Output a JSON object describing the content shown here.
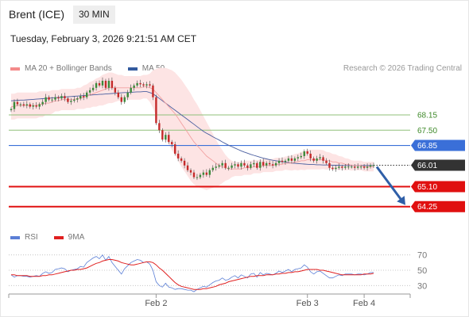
{
  "header": {
    "instrument": "Brent (ICE)",
    "timeframe": "30 MIN",
    "datetime": "Tuesday, February 3, 2026 9:21:51 AM CET"
  },
  "legend_main": [
    {
      "label": "MA 20 + Bollinger Bands",
      "color": "#f48a8a"
    },
    {
      "label": "MA 50",
      "color": "#335b9e"
    }
  ],
  "legend_rsi": [
    {
      "label": "RSI",
      "color": "#5b7fd6"
    },
    {
      "label": "9MA",
      "color": "#e02020"
    }
  ],
  "credit": "Research © 2026 Trading Central",
  "colors": {
    "resistance": "#90c17a",
    "pivot": "#3a6fd8",
    "support": "#e01010",
    "current": "#333333",
    "bull": "#3a8a3a",
    "bear": "#c52a2a",
    "bb_fill": "#fde4e4",
    "ma20": "#f2a0a0",
    "ma50": "#4a5fa0",
    "arrow": "#2f5fa8"
  },
  "chart_data": [
    {
      "type": "candlestick",
      "title": "",
      "ylim": [
        63.6,
        69.8
      ],
      "x_ticks": [
        {
          "label": "Feb 2",
          "index": 46
        },
        {
          "label": "Feb 3",
          "index": 94
        },
        {
          "label": "Feb 4",
          "index": 112
        }
      ],
      "n_bars": 116,
      "levels": [
        {
          "value": 68.15,
          "label": "68.15",
          "kind": "resistance"
        },
        {
          "value": 67.5,
          "label": "67.50",
          "kind": "resistance"
        },
        {
          "value": 66.85,
          "label": "66.85",
          "kind": "pivot"
        },
        {
          "value": 66.01,
          "label": "66.01",
          "kind": "current"
        },
        {
          "value": 65.1,
          "label": "65.10",
          "kind": "support"
        },
        {
          "value": 64.25,
          "label": "64.25",
          "kind": "support"
        }
      ],
      "close": [
        68.4,
        68.7,
        68.6,
        68.6,
        68.55,
        68.6,
        68.5,
        68.55,
        68.5,
        68.6,
        68.7,
        68.9,
        68.8,
        68.8,
        68.9,
        68.85,
        68.95,
        68.85,
        68.7,
        68.75,
        68.8,
        68.85,
        68.95,
        68.9,
        69.1,
        69.2,
        69.3,
        69.5,
        69.4,
        69.6,
        69.3,
        69.6,
        69.3,
        69.1,
        68.9,
        68.7,
        68.9,
        69.1,
        69.3,
        69.4,
        69.5,
        69.45,
        69.4,
        69.45,
        69.4,
        68.9,
        67.8,
        67.5,
        67.1,
        67.3,
        67.0,
        66.9,
        66.5,
        66.3,
        66.2,
        66.0,
        65.8,
        65.7,
        65.5,
        65.5,
        65.6,
        65.7,
        65.6,
        65.8,
        65.9,
        65.95,
        66.0,
        66.1,
        65.9,
        65.9,
        66.0,
        66.05,
        65.95,
        66.1,
        66.0,
        65.9,
        66.05,
        66.1,
        65.9,
        66.15,
        66.0,
        66.1,
        66.05,
        66.0,
        66.1,
        66.2,
        66.15,
        66.2,
        66.3,
        66.2,
        66.3,
        66.35,
        66.4,
        66.6,
        66.5,
        66.3,
        66.2,
        66.3,
        66.35,
        66.2,
        66.1,
        65.9,
        65.85,
        65.9,
        65.95,
        65.9,
        65.95,
        65.95,
        65.95,
        65.9,
        65.95,
        65.95,
        65.9,
        65.95,
        66.01,
        66.01
      ],
      "ma20": [
        68.5,
        68.5,
        68.55,
        68.55,
        68.55,
        68.55,
        68.55,
        68.55,
        68.55,
        68.6,
        68.6,
        68.65,
        68.65,
        68.7,
        68.75,
        68.75,
        68.8,
        68.8,
        68.8,
        68.8,
        68.8,
        68.85,
        68.85,
        68.9,
        68.95,
        69.0,
        69.05,
        69.1,
        69.15,
        69.2,
        69.25,
        69.3,
        69.3,
        69.3,
        69.3,
        69.3,
        69.3,
        69.3,
        69.3,
        69.3,
        69.3,
        69.3,
        69.35,
        69.35,
        69.3,
        69.25,
        69.1,
        68.95,
        68.8,
        68.65,
        68.5,
        68.35,
        68.2,
        68.0,
        67.8,
        67.6,
        67.4,
        67.2,
        67.0,
        66.85,
        66.7,
        66.55,
        66.4,
        66.3,
        66.2,
        66.1,
        66.0,
        65.95,
        65.9,
        65.85,
        65.85,
        65.85,
        65.85,
        65.85,
        65.9,
        65.9,
        65.9,
        65.95,
        65.95,
        65.95,
        66.0,
        66.0,
        66.0,
        66.0,
        66.05,
        66.05,
        66.05,
        66.1,
        66.1,
        66.1,
        66.15,
        66.15,
        66.2,
        66.2,
        66.25,
        66.25,
        66.25,
        66.25,
        66.25,
        66.25,
        66.2,
        66.2,
        66.15,
        66.15,
        66.1,
        66.1,
        66.05,
        66.05,
        66.0,
        66.0,
        66.0,
        66.0,
        65.95,
        65.95,
        65.95,
        65.95
      ],
      "ma50": [
        68.75,
        68.76,
        68.77,
        68.78,
        68.78,
        68.79,
        68.8,
        68.81,
        68.82,
        68.83,
        68.84,
        68.85,
        68.86,
        68.87,
        68.88,
        68.89,
        68.9,
        68.91,
        68.92,
        68.93,
        68.94,
        68.95,
        68.96,
        68.97,
        68.98,
        68.99,
        69.0,
        69.01,
        69.02,
        69.03,
        69.04,
        69.05,
        69.06,
        69.07,
        69.08,
        69.09,
        69.1,
        69.1,
        69.11,
        69.12,
        69.13,
        69.13,
        69.14,
        69.14,
        69.1,
        69.05,
        68.95,
        68.85,
        68.75,
        68.65,
        68.55,
        68.45,
        68.35,
        68.25,
        68.15,
        68.05,
        67.95,
        67.85,
        67.75,
        67.65,
        67.55,
        67.45,
        67.37,
        67.3,
        67.22,
        67.15,
        67.08,
        67.0,
        66.93,
        66.86,
        66.8,
        66.74,
        66.68,
        66.62,
        66.57,
        66.52,
        66.47,
        66.43,
        66.39,
        66.35,
        66.31,
        66.28,
        66.25,
        66.22,
        66.2,
        66.18,
        66.16,
        66.14,
        66.12,
        66.1,
        66.09,
        66.08,
        66.07,
        66.06,
        66.05,
        66.04,
        66.04,
        66.03,
        66.03,
        66.02,
        66.02,
        66.02,
        66.01,
        66.01,
        66.01,
        66.0,
        66.0,
        66.0,
        66.0,
        66.0,
        66.0,
        66.0,
        66.0,
        66.0,
        66.0,
        66.0
      ],
      "bb_width": [
        0.55,
        0.55,
        0.55,
        0.55,
        0.55,
        0.55,
        0.55,
        0.55,
        0.55,
        0.55,
        0.55,
        0.5,
        0.5,
        0.5,
        0.45,
        0.45,
        0.45,
        0.45,
        0.45,
        0.45,
        0.45,
        0.45,
        0.45,
        0.5,
        0.5,
        0.55,
        0.55,
        0.6,
        0.6,
        0.65,
        0.65,
        0.65,
        0.65,
        0.6,
        0.55,
        0.55,
        0.5,
        0.5,
        0.5,
        0.5,
        0.5,
        0.5,
        0.5,
        0.5,
        0.6,
        0.8,
        1.0,
        1.2,
        1.35,
        1.5,
        1.6,
        1.7,
        1.75,
        1.8,
        1.85,
        1.85,
        1.85,
        1.85,
        1.8,
        1.75,
        1.65,
        1.55,
        1.45,
        1.3,
        1.15,
        1.0,
        0.85,
        0.7,
        0.55,
        0.45,
        0.35,
        0.3,
        0.3,
        0.3,
        0.3,
        0.3,
        0.3,
        0.28,
        0.28,
        0.28,
        0.28,
        0.28,
        0.28,
        0.28,
        0.28,
        0.28,
        0.28,
        0.28,
        0.3,
        0.32,
        0.34,
        0.36,
        0.38,
        0.4,
        0.42,
        0.42,
        0.42,
        0.42,
        0.42,
        0.4,
        0.38,
        0.36,
        0.34,
        0.32,
        0.3,
        0.28,
        0.26,
        0.24,
        0.22,
        0.2,
        0.2,
        0.2,
        0.2,
        0.2,
        0.2,
        0.2
      ],
      "projection": {
        "from_index": 115,
        "from_value": 66.01,
        "to_value": 64.25
      }
    },
    {
      "type": "line",
      "title": "RSI",
      "ylim": [
        20,
        80
      ],
      "y_ticks": [
        70,
        50,
        30
      ],
      "series": [
        {
          "name": "RSI",
          "values": [
            44,
            41,
            43,
            43,
            42,
            42,
            41,
            42,
            43,
            42,
            46,
            48,
            46,
            47,
            51,
            52,
            53,
            52,
            48,
            50,
            51,
            52,
            55,
            54,
            60,
            63,
            66,
            68,
            65,
            70,
            63,
            68,
            60,
            55,
            50,
            45,
            52,
            56,
            60,
            62,
            64,
            63,
            60,
            61,
            58,
            50,
            35,
            30,
            28,
            33,
            28,
            27,
            25,
            26,
            26,
            25,
            24,
            24,
            22,
            25,
            27,
            29,
            28,
            31,
            34,
            36,
            37,
            40,
            37,
            38,
            41,
            43,
            40,
            44,
            42,
            40,
            45,
            46,
            41,
            47,
            44,
            46,
            45,
            44,
            46,
            49,
            47,
            49,
            51,
            48,
            51,
            52,
            53,
            57,
            54,
            48,
            45,
            48,
            49,
            46,
            43,
            40,
            40,
            42,
            44,
            43,
            45,
            45,
            45,
            44,
            45,
            45,
            44,
            45,
            47,
            47
          ]
        },
        {
          "name": "9MA",
          "values": [
            44,
            44,
            43,
            43,
            43,
            43,
            42,
            42,
            42,
            42,
            43,
            43,
            44,
            44,
            45,
            46,
            47,
            48,
            49,
            50,
            50,
            51,
            51,
            52,
            53,
            55,
            57,
            59,
            60,
            62,
            63,
            64,
            64,
            63,
            62,
            60,
            59,
            58,
            57,
            57,
            58,
            59,
            60,
            61,
            61,
            60,
            57,
            53,
            50,
            46,
            42,
            38,
            34,
            31,
            29,
            28,
            27,
            26,
            25,
            25,
            25,
            26,
            26,
            27,
            28,
            29,
            31,
            32,
            33,
            35,
            36,
            37,
            38,
            39,
            40,
            41,
            42,
            42,
            43,
            43,
            43,
            44,
            44,
            44,
            45,
            45,
            46,
            46,
            47,
            47,
            48,
            48,
            49,
            50,
            51,
            51,
            51,
            51,
            50,
            50,
            49,
            48,
            47,
            46,
            45,
            44,
            44,
            44,
            44,
            44,
            44,
            44,
            45,
            45,
            45,
            46
          ]
        }
      ]
    }
  ]
}
